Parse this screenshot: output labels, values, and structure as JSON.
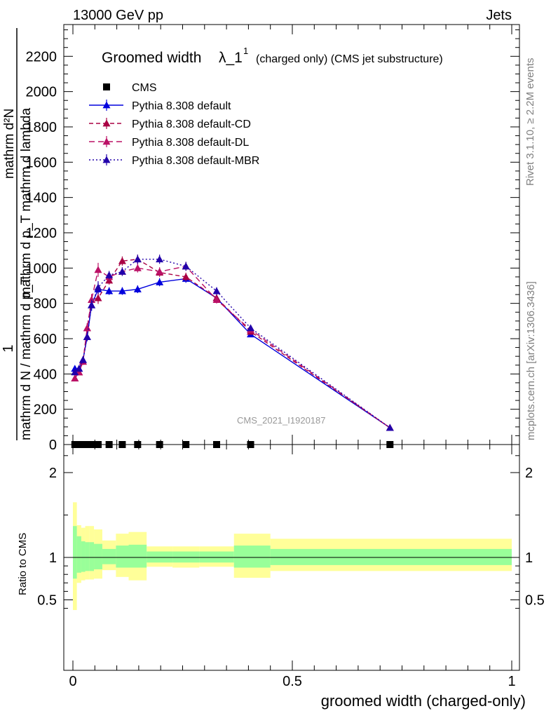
{
  "header": {
    "left": "13000 GeV pp",
    "right": "Jets"
  },
  "side": {
    "rivet": "Rivet 3.1.10, ≥ 2.2M events",
    "mcplots": "mcplots.cern.ch [arXiv:1306.3436]"
  },
  "ylabel_parts": {
    "one": "1",
    "denominator": "mathrm d N / mathrm d p_T",
    "numerator": "mathrm d²N",
    "numerator_bottom": "mathrm d p_T mathrm d lambda"
  },
  "colors": {
    "data": "#000000",
    "default": "#0000dd",
    "cd": "#aa0044",
    "dl": "#bb1166",
    "mbr": "#2200aa",
    "band_inner": "#99ff99",
    "band_outer": "#ffff99"
  },
  "chart_data": [
    {
      "type": "line",
      "title_main": "Groomed width",
      "title_symbol": "λ_1",
      "title_sup": "1",
      "title_note": "(charged only) (CMS jet substructure)",
      "watermark": "CMS_2021_I1920187",
      "xlim": [
        0,
        1
      ],
      "ylim": [
        0,
        2200
      ],
      "yticks": [
        0,
        200,
        400,
        600,
        800,
        1000,
        1200,
        1400,
        1600,
        1800,
        2000,
        2200
      ],
      "x": [
        0.0045,
        0.014,
        0.023,
        0.0325,
        0.0425,
        0.0575,
        0.0825,
        0.1125,
        0.1475,
        0.1975,
        0.2575,
        0.3275,
        0.405,
        0.7225
      ],
      "series": [
        {
          "name": "CMS",
          "style": "marker",
          "values": [
            0,
            0,
            0,
            0,
            0,
            0,
            0,
            0,
            0,
            0,
            0,
            0,
            0,
            0
          ]
        },
        {
          "name": "Pythia 8.308 default",
          "style": "solid",
          "values": [
            430,
            430,
            480,
            610,
            790,
            880,
            870,
            870,
            880,
            920,
            940,
            830,
            625,
            95
          ]
        },
        {
          "name": "Pythia 8.308 default-CD",
          "style": "dashed",
          "values": [
            375,
            410,
            470,
            660,
            820,
            830,
            930,
            1040,
            1050,
            975,
            950,
            830,
            640,
            95
          ]
        },
        {
          "name": "Pythia 8.308 default-DL",
          "style": "dashed",
          "values": [
            375,
            410,
            470,
            660,
            820,
            990,
            950,
            980,
            1000,
            980,
            1010,
            820,
            650,
            95
          ]
        },
        {
          "name": "Pythia 8.308 default-MBR",
          "style": "dotted",
          "values": [
            410,
            430,
            480,
            610,
            790,
            890,
            960,
            980,
            1050,
            1050,
            1010,
            870,
            660,
            95
          ]
        }
      ]
    },
    {
      "type": "area",
      "ylabel": "Ratio to CMS",
      "xlabel": "groomed width (charged-only)",
      "xlim": [
        0,
        1
      ],
      "ylim": [
        0.35,
        2.3
      ],
      "xticks": [
        0,
        0.5,
        1
      ],
      "yticks": [
        0.5,
        1,
        2
      ],
      "reference": 1,
      "bins": [
        {
          "x0": 0.0,
          "x1": 0.009,
          "inner": [
            0.75,
            1.37
          ],
          "outer": [
            0.38,
            1.65
          ]
        },
        {
          "x0": 0.009,
          "x1": 0.019,
          "inner": [
            0.82,
            1.25
          ],
          "outer": [
            0.7,
            1.38
          ]
        },
        {
          "x0": 0.019,
          "x1": 0.028,
          "inner": [
            0.83,
            1.19
          ],
          "outer": [
            0.73,
            1.35
          ]
        },
        {
          "x0": 0.028,
          "x1": 0.037,
          "inner": [
            0.84,
            1.18
          ],
          "outer": [
            0.74,
            1.37
          ]
        },
        {
          "x0": 0.037,
          "x1": 0.048,
          "inner": [
            0.84,
            1.18
          ],
          "outer": [
            0.74,
            1.37
          ]
        },
        {
          "x0": 0.048,
          "x1": 0.067,
          "inner": [
            0.86,
            1.16
          ],
          "outer": [
            0.75,
            1.33
          ]
        },
        {
          "x0": 0.067,
          "x1": 0.098,
          "inner": [
            0.92,
            1.1
          ],
          "outer": [
            0.85,
            1.2
          ]
        },
        {
          "x0": 0.098,
          "x1": 0.127,
          "inner": [
            0.88,
            1.14
          ],
          "outer": [
            0.77,
            1.28
          ]
        },
        {
          "x0": 0.127,
          "x1": 0.168,
          "inner": [
            0.88,
            1.15
          ],
          "outer": [
            0.73,
            1.3
          ]
        },
        {
          "x0": 0.168,
          "x1": 0.227,
          "inner": [
            0.94,
            1.07
          ],
          "outer": [
            0.89,
            1.13
          ]
        },
        {
          "x0": 0.227,
          "x1": 0.288,
          "inner": [
            0.94,
            1.07
          ],
          "outer": [
            0.88,
            1.13
          ]
        },
        {
          "x0": 0.288,
          "x1": 0.367,
          "inner": [
            0.94,
            1.07
          ],
          "outer": [
            0.89,
            1.13
          ]
        },
        {
          "x0": 0.367,
          "x1": 0.45,
          "inner": [
            0.88,
            1.14
          ],
          "outer": [
            0.76,
            1.28
          ]
        },
        {
          "x0": 0.45,
          "x1": 1.0,
          "inner": [
            0.91,
            1.1
          ],
          "outer": [
            0.84,
            1.22
          ]
        }
      ]
    }
  ]
}
